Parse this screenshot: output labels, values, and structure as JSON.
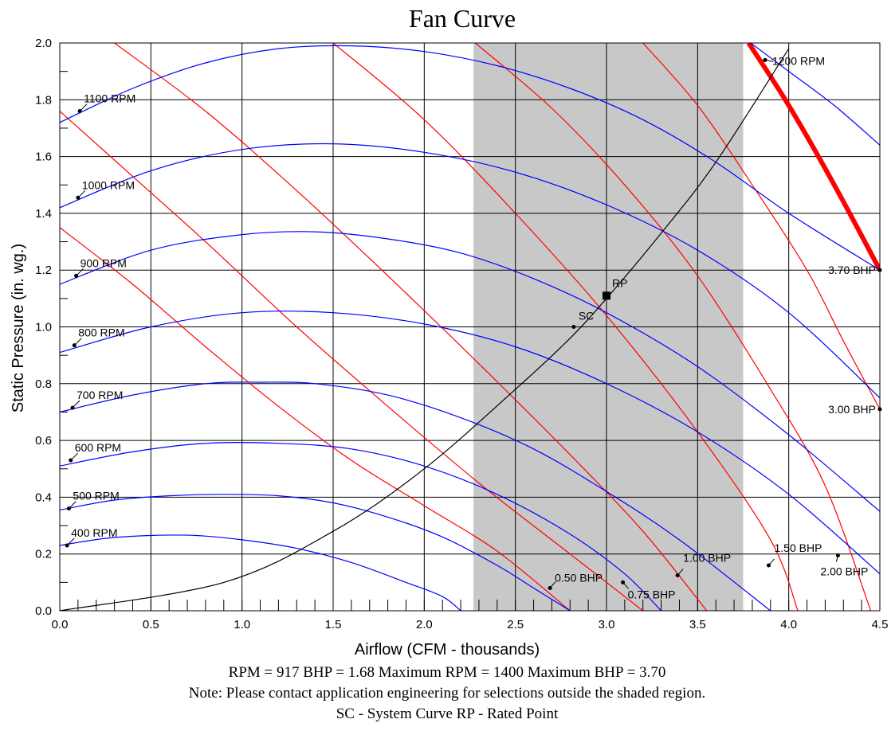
{
  "chart_data": {
    "type": "line",
    "title": "Fan Curve",
    "xlabel": "Airflow (CFM - thousands)",
    "ylabel": "Static Pressure (in. wg.)",
    "xlim": [
      0,
      4.5
    ],
    "ylim": [
      0,
      2.0
    ],
    "xticks": [
      "0.0",
      "0.5",
      "1.0",
      "1.5",
      "2.0",
      "2.5",
      "3.0",
      "3.5",
      "4.0",
      "4.5"
    ],
    "yticks": [
      "0.0",
      "0.2",
      "0.4",
      "0.6",
      "0.8",
      "1.0",
      "1.2",
      "1.4",
      "1.6",
      "1.8",
      "2.0"
    ],
    "grid": true,
    "shaded_region": {
      "x_from": 2.27,
      "x_to": 3.75,
      "color": "#c8c8c8"
    },
    "colors": {
      "rpm": "#0000ff",
      "bhp": "#ff0000",
      "system": "#000000",
      "max_bhp": "#ff0000"
    },
    "rpm_curves": [
      {
        "name": "400 RPM",
        "x": [
          0,
          0.25,
          0.5,
          0.75,
          1.0,
          1.3,
          1.6,
          1.9,
          2.1,
          2.2
        ],
        "y": [
          0.23,
          0.255,
          0.265,
          0.265,
          0.25,
          0.22,
          0.17,
          0.1,
          0.05,
          0.0
        ],
        "marker": [
          0.04,
          0.23
        ]
      },
      {
        "name": "500 RPM",
        "x": [
          0,
          0.3,
          0.6,
          0.9,
          1.2,
          1.5,
          1.8,
          2.1,
          2.4,
          2.6,
          2.8
        ],
        "y": [
          0.355,
          0.39,
          0.405,
          0.41,
          0.405,
          0.38,
          0.33,
          0.26,
          0.16,
          0.08,
          0.0
        ],
        "marker": [
          0.05,
          0.36
        ]
      },
      {
        "name": "600 RPM",
        "x": [
          0,
          0.4,
          0.8,
          1.2,
          1.6,
          2.0,
          2.4,
          2.8,
          3.1,
          3.3
        ],
        "y": [
          0.51,
          0.56,
          0.59,
          0.59,
          0.57,
          0.51,
          0.41,
          0.27,
          0.13,
          0.0
        ],
        "marker": [
          0.06,
          0.53
        ]
      },
      {
        "name": "700 RPM",
        "x": [
          0,
          0.4,
          0.8,
          1.1,
          1.4,
          1.8,
          2.2,
          2.6,
          3.0,
          3.4,
          3.9
        ],
        "y": [
          0.7,
          0.76,
          0.8,
          0.805,
          0.8,
          0.76,
          0.68,
          0.57,
          0.42,
          0.25,
          0.0
        ],
        "marker": [
          0.07,
          0.715
        ]
      },
      {
        "name": "800 RPM",
        "x": [
          0,
          0.5,
          1.0,
          1.5,
          2.0,
          2.5,
          3.0,
          3.5,
          4.0,
          4.5
        ],
        "y": [
          0.91,
          1.0,
          1.05,
          1.05,
          1.01,
          0.93,
          0.8,
          0.63,
          0.41,
          0.13
        ],
        "marker": [
          0.08,
          0.935
        ]
      },
      {
        "name": "900 RPM",
        "x": [
          0,
          0.5,
          1.0,
          1.4,
          1.8,
          2.2,
          2.6,
          3.0,
          3.5,
          4.0,
          4.5
        ],
        "y": [
          1.15,
          1.27,
          1.325,
          1.335,
          1.31,
          1.26,
          1.17,
          1.05,
          0.86,
          0.62,
          0.35
        ],
        "marker": [
          0.09,
          1.18
        ]
      },
      {
        "name": "1000 RPM",
        "x": [
          0,
          0.5,
          1.0,
          1.5,
          2.0,
          2.5,
          3.0,
          3.5,
          4.0,
          4.5
        ],
        "y": [
          1.42,
          1.55,
          1.625,
          1.645,
          1.615,
          1.545,
          1.43,
          1.27,
          1.05,
          0.75
        ],
        "marker": [
          0.1,
          1.455
        ]
      },
      {
        "name": "1100 RPM",
        "x": [
          0,
          0.4,
          0.8,
          1.2,
          1.6,
          2.0,
          2.4,
          2.8,
          3.2,
          3.6,
          4.0,
          4.5
        ],
        "y": [
          1.72,
          1.84,
          1.93,
          1.98,
          1.99,
          1.97,
          1.92,
          1.84,
          1.73,
          1.58,
          1.4,
          1.2
        ],
        "marker": [
          0.11,
          1.76
        ]
      },
      {
        "name": "1200 RPM",
        "x": [
          3.75,
          4.0,
          4.25,
          4.5
        ],
        "y": [
          2.02,
          1.9,
          1.78,
          1.64
        ],
        "marker": [
          3.87,
          1.94
        ]
      }
    ],
    "bhp_curves": [
      {
        "name": "0.50 BHP",
        "x": [
          0,
          0.4,
          0.8,
          1.2,
          1.6,
          2.0,
          2.4,
          2.8
        ],
        "y": [
          1.35,
          1.15,
          0.93,
          0.72,
          0.53,
          0.37,
          0.21,
          0.0
        ],
        "marker": [
          2.69,
          0.08
        ]
      },
      {
        "name": "0.75 BHP",
        "x": [
          0,
          0.4,
          0.8,
          1.3,
          1.8,
          2.3,
          2.8,
          3.2
        ],
        "y": [
          1.76,
          1.53,
          1.3,
          1.0,
          0.72,
          0.45,
          0.2,
          0.0
        ],
        "marker": [
          3.09,
          0.1
        ]
      },
      {
        "name": "1.00 BHP",
        "x": [
          0.3,
          0.8,
          1.3,
          1.8,
          2.3,
          2.8,
          3.2,
          3.55
        ],
        "y": [
          2.0,
          1.76,
          1.48,
          1.18,
          0.87,
          0.55,
          0.28,
          0.0
        ],
        "marker": [
          3.39,
          0.125
        ]
      },
      {
        "name": "1.50 BHP",
        "x": [
          1.5,
          2.0,
          2.5,
          3.0,
          3.5,
          3.9,
          4.05
        ],
        "y": [
          2.0,
          1.73,
          1.4,
          1.04,
          0.63,
          0.25,
          0.0
        ],
        "marker": [
          3.89,
          0.16
        ]
      },
      {
        "name": "2.00 BHP",
        "x": [
          2.28,
          2.7,
          3.1,
          3.5,
          3.9,
          4.2,
          4.45
        ],
        "y": [
          2.0,
          1.77,
          1.5,
          1.18,
          0.78,
          0.44,
          0.0
        ],
        "marker": [
          4.27,
          0.195
        ]
      },
      {
        "name": "3.00 BHP",
        "x": [
          3.2,
          3.5,
          3.8,
          4.1,
          4.3,
          4.5
        ],
        "y": [
          2.0,
          1.78,
          1.5,
          1.2,
          0.95,
          0.71
        ],
        "marker": [
          4.5,
          0.71
        ]
      }
    ],
    "max_bhp_curve": {
      "name": "3.70 BHP",
      "x": [
        3.78,
        4.0,
        4.25,
        4.5
      ],
      "y": [
        2.0,
        1.78,
        1.5,
        1.2
      ],
      "marker": [
        4.5,
        1.2
      ]
    },
    "system_curve": {
      "name": "SC",
      "x": [
        0,
        0.9,
        1.5,
        2.0,
        2.5,
        2.8,
        3.0,
        3.3,
        3.6,
        4.0
      ],
      "y": [
        0.0,
        0.1,
        0.28,
        0.5,
        0.78,
        0.96,
        1.1,
        1.33,
        1.58,
        1.98
      ],
      "marker": [
        2.82,
        1.0
      ]
    },
    "rated_point": {
      "name": "RP",
      "x": 3.0,
      "y": 1.11
    }
  },
  "footer": {
    "line1": "RPM = 917  BHP = 1.68  Maximum RPM = 1400  Maximum BHP = 3.70",
    "line2": "Note: Please contact application engineering for selections outside the shaded region.",
    "line3": "SC - System Curve  RP - Rated Point"
  }
}
